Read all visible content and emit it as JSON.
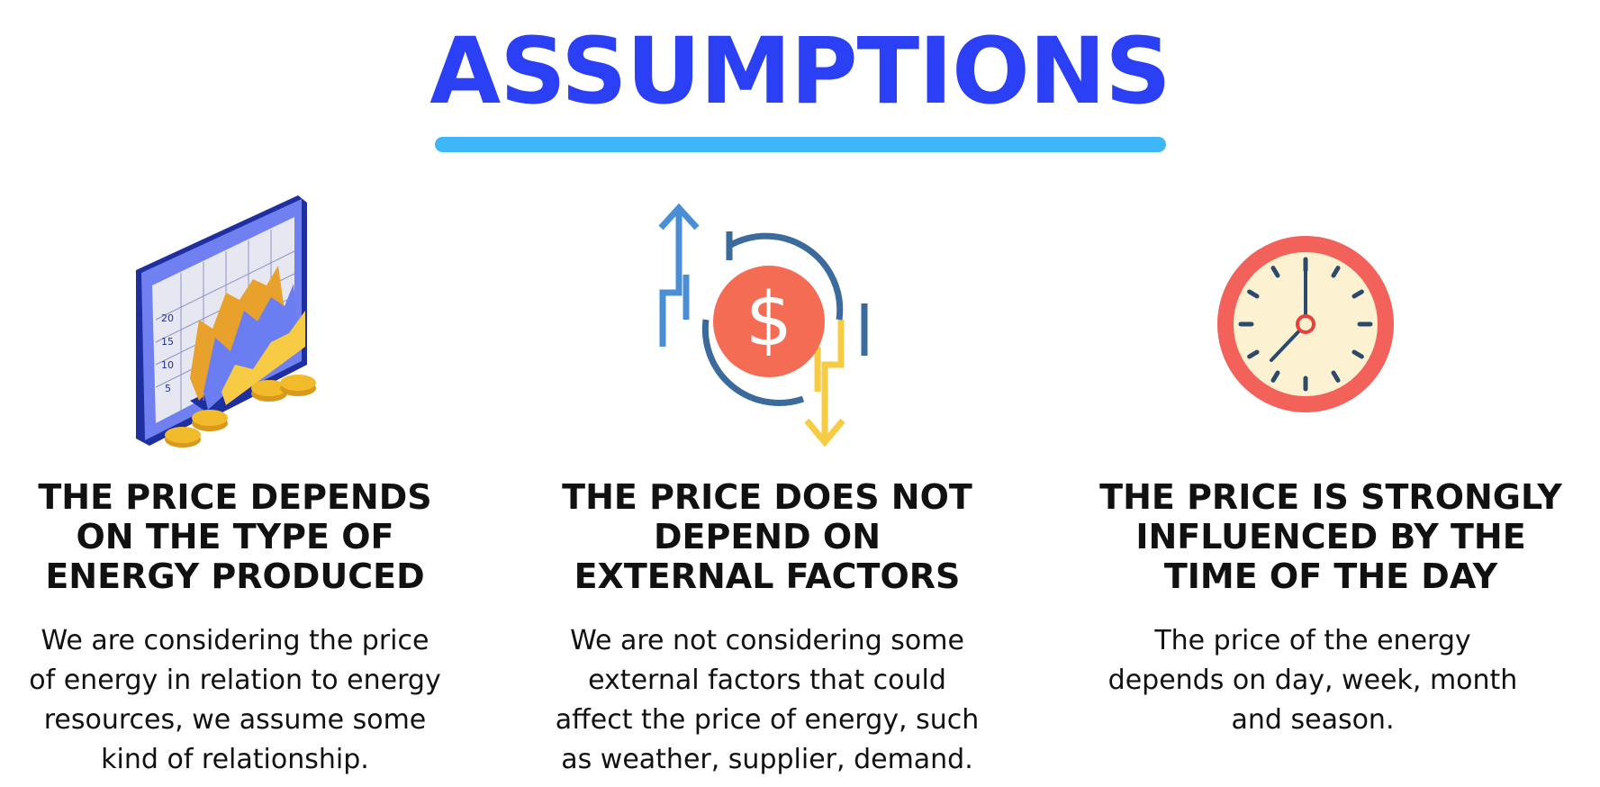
{
  "title": "ASSUMPTIONS",
  "colors": {
    "title": "#2b3ff5",
    "underline": "#3eb6f7",
    "monitor": "#1f2fa0",
    "coin": "#f2bb2c",
    "dollar_circle": "#f56c55",
    "arrow_blue": "#4a8fd6",
    "arrow_yellow": "#f7cc44",
    "cycle_arrow": "#3b6a9c",
    "clock_rim": "#f3625a",
    "clock_face": "#fcf1d0",
    "clock_hand": "#2c4a6b"
  },
  "columns": [
    {
      "icon": "stock-chart-monitor-icon",
      "chart_ticks": [
        "20",
        "15",
        "10",
        "5"
      ],
      "heading": [
        "THE PRICE DEPENDS",
        "ON THE TYPE OF",
        "ENERGY PRODUCED"
      ],
      "body": [
        "We are considering the price",
        "of energy in relation to energy",
        "resources, we assume some",
        "kind of relationship."
      ]
    },
    {
      "icon": "price-fluctuation-dollar-icon",
      "dollar_symbol": "$",
      "heading": [
        "THE PRICE DOES NOT",
        "DEPEND ON",
        "EXTERNAL FACTORS"
      ],
      "body": [
        "We are not considering some",
        "external factors that could",
        "affect the price of energy, such",
        "as weather, supplier, demand."
      ]
    },
    {
      "icon": "clock-icon",
      "heading": [
        "THE PRICE IS STRONGLY",
        "INFLUENCED BY THE",
        "TIME OF THE DAY"
      ],
      "body": [
        "The price of the energy",
        "depends on day, week, month",
        "and season."
      ]
    }
  ]
}
